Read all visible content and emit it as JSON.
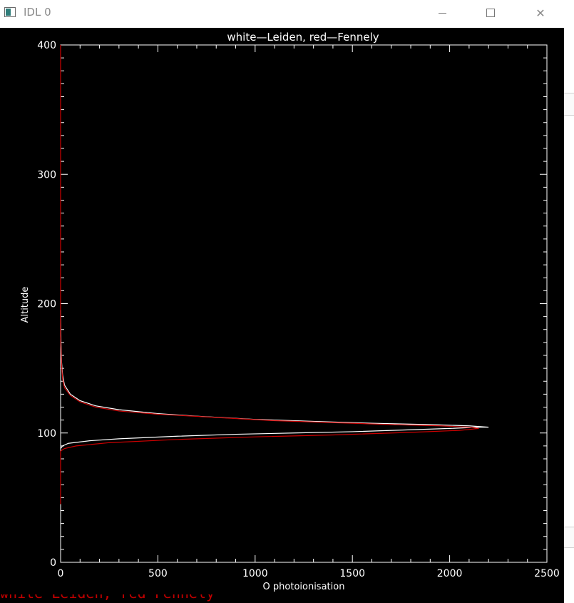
{
  "window": {
    "title": "IDL 0",
    "icon": "idl-window-icon",
    "controls": {
      "minimize": "minimize-icon",
      "maximize": "maximize-icon",
      "close": "close-icon"
    },
    "close_glyph": "✕"
  },
  "background_text": "white—Leiden, red—Fennely",
  "chart_data": {
    "type": "line",
    "title": "white—Leiden, red—Fennely",
    "xlabel": "O photoionisation",
    "ylabel": "Altitude",
    "xlim": [
      0,
      2500
    ],
    "ylim": [
      0,
      400
    ],
    "xticks": [
      0,
      500,
      1000,
      1500,
      2000,
      2500
    ],
    "yticks": [
      0,
      100,
      200,
      300,
      400
    ],
    "background": "#000000",
    "axis_color": "#ffffff",
    "series": [
      {
        "color": "#ffffff",
        "points": [
          [
            0,
            88
          ],
          [
            10,
            90
          ],
          [
            40,
            92
          ],
          [
            150,
            94
          ],
          [
            300,
            95.5
          ],
          [
            600,
            97.5
          ],
          [
            900,
            99
          ],
          [
            1200,
            100
          ],
          [
            1500,
            101
          ],
          [
            1800,
            102.5
          ],
          [
            2000,
            103.5
          ],
          [
            2150,
            104.5
          ],
          [
            2200,
            104.5
          ],
          [
            2100,
            105.5
          ],
          [
            1900,
            106.5
          ],
          [
            1600,
            107.5
          ],
          [
            1300,
            109
          ],
          [
            1000,
            110.5
          ],
          [
            700,
            113
          ],
          [
            500,
            115
          ],
          [
            300,
            118
          ],
          [
            180,
            121
          ],
          [
            100,
            125
          ],
          [
            50,
            130
          ],
          [
            20,
            137
          ],
          [
            10,
            145
          ],
          [
            5,
            155
          ],
          [
            2,
            170
          ],
          [
            0,
            195
          ]
        ]
      },
      {
        "color": "#cc0000",
        "points": [
          [
            0,
            86
          ],
          [
            20,
            88
          ],
          [
            80,
            90
          ],
          [
            250,
            92.5
          ],
          [
            600,
            95
          ],
          [
            1000,
            97
          ],
          [
            1400,
            98.5
          ],
          [
            1800,
            100.5
          ],
          [
            2050,
            102
          ],
          [
            2150,
            103.5
          ],
          [
            2100,
            104.5
          ],
          [
            1950,
            105.5
          ],
          [
            1700,
            106.5
          ],
          [
            1400,
            108
          ],
          [
            1100,
            109.5
          ],
          [
            800,
            112
          ],
          [
            500,
            114.5
          ],
          [
            300,
            117
          ],
          [
            180,
            120
          ],
          [
            100,
            124
          ],
          [
            50,
            129
          ],
          [
            20,
            135
          ],
          [
            10,
            142
          ],
          [
            5,
            152
          ],
          [
            0,
            175
          ],
          [
            0,
            400
          ]
        ]
      },
      {
        "color": "#cc0000",
        "points": [
          [
            0,
            45
          ],
          [
            0,
            86
          ]
        ]
      }
    ]
  }
}
